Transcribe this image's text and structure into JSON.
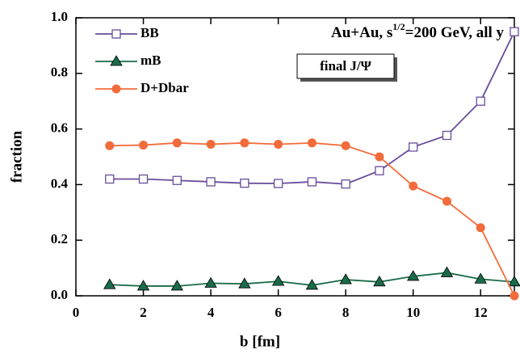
{
  "chart_data": {
    "type": "line",
    "xlabel": "b [fm]",
    "ylabel": "fraction",
    "annotation": {
      "parts": [
        "Au+Au, s",
        "1/2",
        "=200 GeV, all y"
      ]
    },
    "box_label": "final J/Ψ",
    "x": [
      1,
      2,
      3,
      4,
      5,
      6,
      7,
      8,
      9,
      10,
      11,
      12,
      13
    ],
    "series": [
      {
        "name": "BB",
        "color": "#6a4c9c",
        "marker": "square",
        "values": [
          0.42,
          0.42,
          0.415,
          0.41,
          0.405,
          0.404,
          0.41,
          0.402,
          0.45,
          0.535,
          0.577,
          0.7,
          0.95
        ]
      },
      {
        "name": "mB",
        "color": "#1a6b4a",
        "marker": "triangle",
        "values": [
          0.04,
          0.035,
          0.035,
          0.045,
          0.043,
          0.052,
          0.038,
          0.058,
          0.05,
          0.07,
          0.083,
          0.06,
          0.05
        ]
      },
      {
        "name": "D+Dbar",
        "color": "#f26b3a",
        "marker": "circle",
        "values": [
          0.54,
          0.542,
          0.55,
          0.545,
          0.55,
          0.545,
          0.55,
          0.54,
          0.5,
          0.395,
          0.34,
          0.245,
          0.0
        ]
      }
    ],
    "xlim": [
      0,
      13
    ],
    "xticks": [
      0,
      2,
      4,
      6,
      8,
      10,
      12
    ],
    "ylim": [
      0,
      1
    ],
    "yticks": [
      {
        "value": 0,
        "label": "0.0"
      },
      0.2,
      0.4,
      0.6,
      0.8,
      {
        "value": 1,
        "label": "1.0"
      }
    ]
  }
}
